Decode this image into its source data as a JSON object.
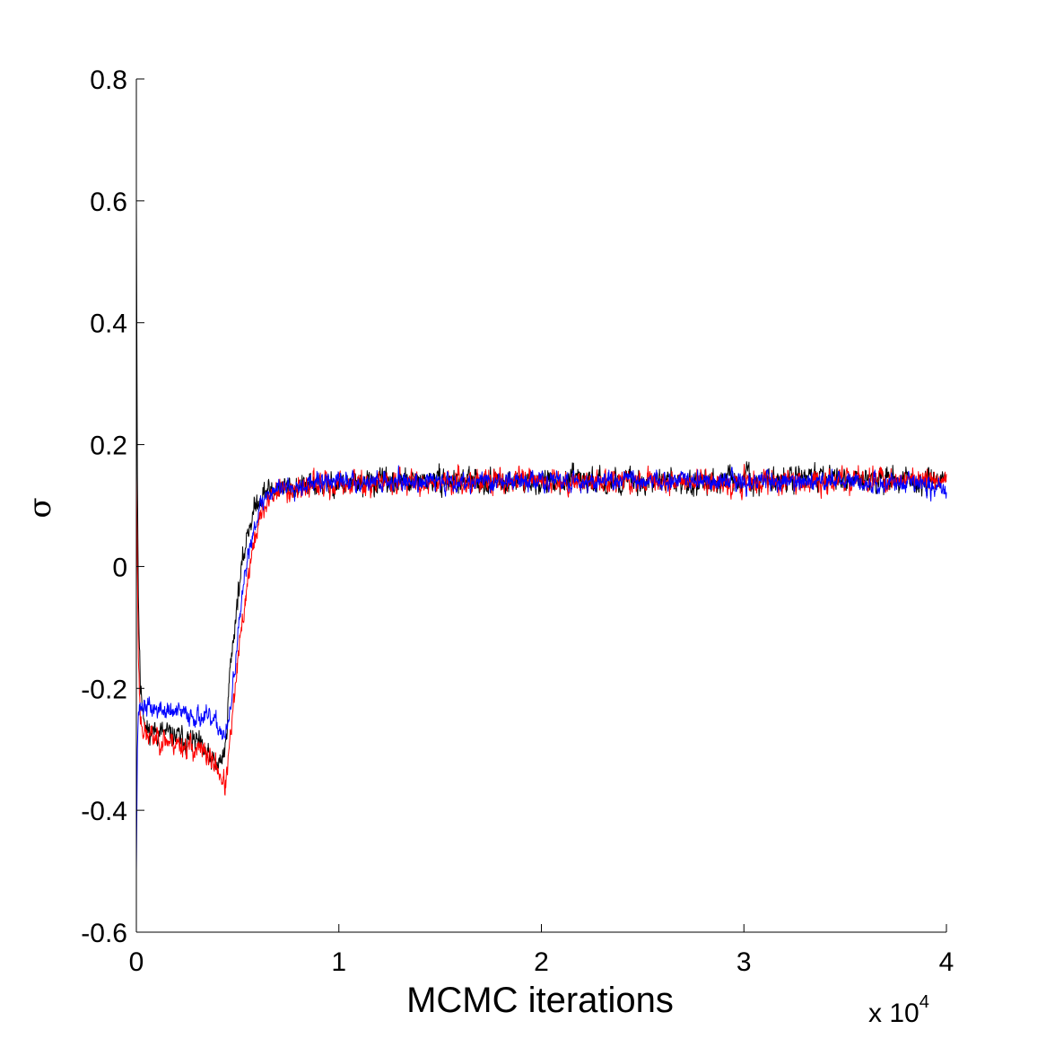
{
  "chart_data": {
    "type": "line",
    "title": "",
    "xlabel": "MCMC iterations",
    "ylabel": "σ",
    "x_multiplier": {
      "base": "x 10",
      "exponent": "4"
    },
    "xlim": [
      0,
      4
    ],
    "ylim": [
      -0.6,
      0.8
    ],
    "x_ticks": [
      0,
      1,
      2,
      3,
      4
    ],
    "x_tick_labels": [
      "0",
      "1",
      "2",
      "3",
      "4"
    ],
    "y_ticks": [
      -0.6,
      -0.4,
      -0.2,
      0,
      0.2,
      0.4,
      0.6,
      0.8
    ],
    "y_tick_labels": [
      "-0.6",
      "-0.4",
      "-0.2",
      "0",
      "0.2",
      "0.4",
      "0.6",
      "0.8"
    ],
    "grid": false,
    "legend": "none",
    "series": [
      {
        "color": "#000000",
        "noise": 0.018,
        "seed": 11,
        "x": [
          0,
          0.005,
          0.01,
          0.02,
          0.05,
          0.1,
          0.2,
          0.3,
          0.35,
          0.4,
          0.44,
          0.46,
          0.5,
          0.55,
          0.6,
          0.65,
          0.7,
          0.8,
          1.0,
          1.5,
          2.0,
          2.5,
          3.0,
          3.3,
          3.5,
          4.0
        ],
        "y": [
          0.6,
          0.15,
          -0.05,
          -0.2,
          -0.27,
          -0.27,
          -0.28,
          -0.29,
          -0.31,
          -0.33,
          -0.3,
          -0.18,
          -0.05,
          0.06,
          0.11,
          0.125,
          0.13,
          0.13,
          0.135,
          0.14,
          0.14,
          0.14,
          0.14,
          0.145,
          0.145,
          0.14
        ]
      },
      {
        "color": "#ff0000",
        "noise": 0.018,
        "seed": 23,
        "x": [
          0,
          0.005,
          0.01,
          0.02,
          0.05,
          0.1,
          0.2,
          0.3,
          0.35,
          0.4,
          0.44,
          0.46,
          0.5,
          0.55,
          0.6,
          0.65,
          0.7,
          0.8,
          1.0,
          1.5,
          2.0,
          2.5,
          3.0,
          3.5,
          4.0
        ],
        "y": [
          0.15,
          0.0,
          -0.15,
          -0.25,
          -0.28,
          -0.28,
          -0.29,
          -0.3,
          -0.31,
          -0.33,
          -0.36,
          -0.3,
          -0.16,
          -0.02,
          0.07,
          0.11,
          0.125,
          0.13,
          0.135,
          0.14,
          0.14,
          0.14,
          0.14,
          0.14,
          0.145
        ]
      },
      {
        "color": "#0000ff",
        "noise": 0.015,
        "seed": 37,
        "x": [
          0,
          0.005,
          0.01,
          0.02,
          0.05,
          0.1,
          0.2,
          0.3,
          0.35,
          0.4,
          0.44,
          0.46,
          0.5,
          0.55,
          0.6,
          0.65,
          0.7,
          0.8,
          1.0,
          1.5,
          2.0,
          2.5,
          3.0,
          3.5,
          4.0
        ],
        "y": [
          -0.5,
          -0.3,
          -0.24,
          -0.23,
          -0.23,
          -0.235,
          -0.24,
          -0.245,
          -0.25,
          -0.26,
          -0.28,
          -0.25,
          -0.12,
          0.02,
          0.09,
          0.12,
          0.13,
          0.135,
          0.14,
          0.14,
          0.14,
          0.14,
          0.14,
          0.14,
          0.13
        ]
      }
    ]
  }
}
